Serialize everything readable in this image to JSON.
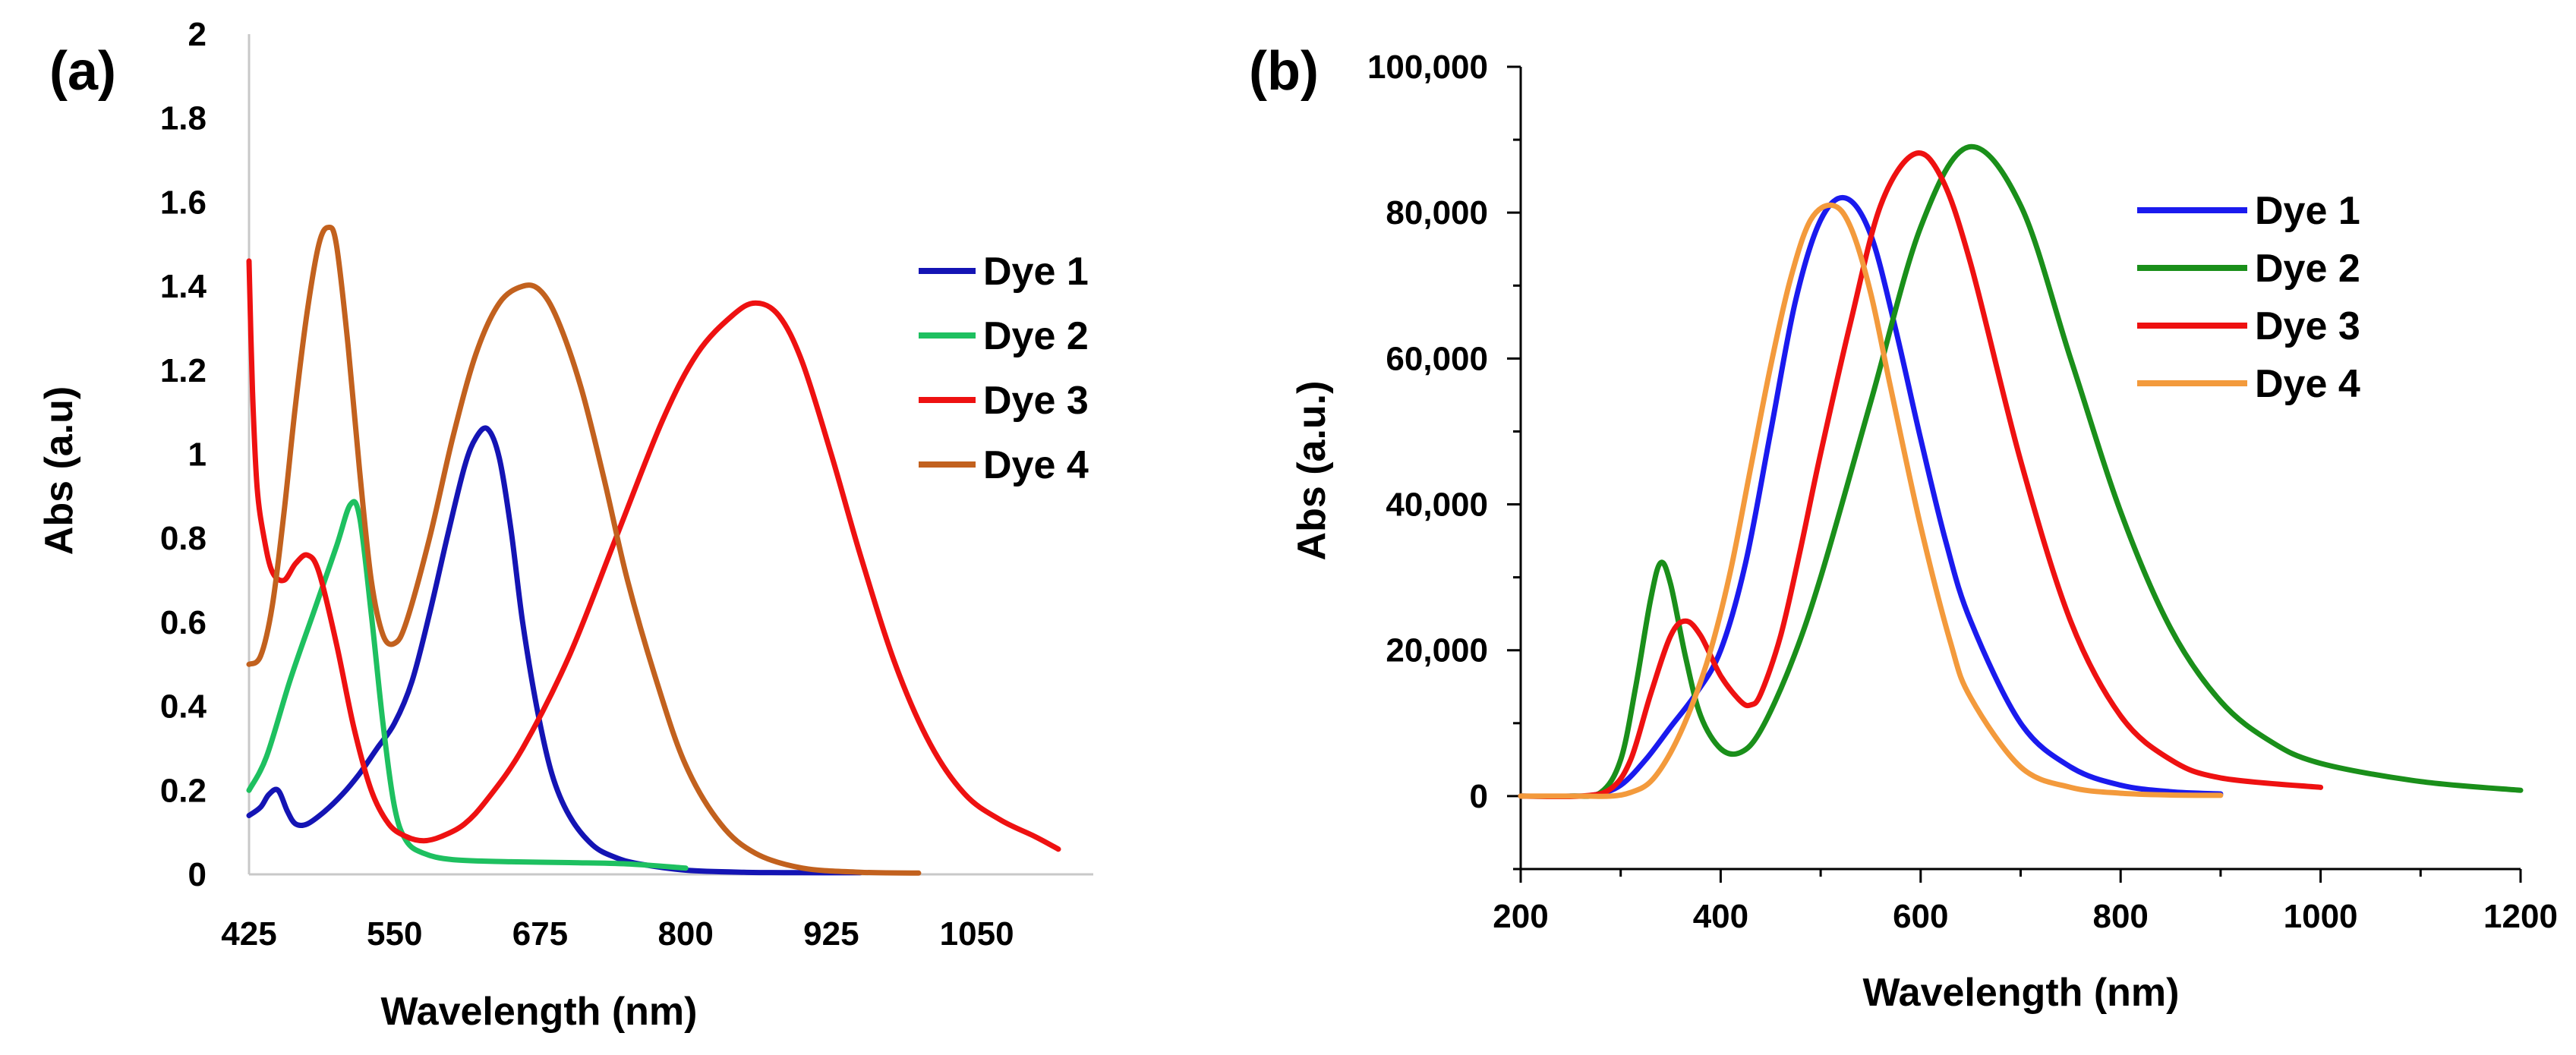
{
  "chart_data": [
    {
      "type": "line",
      "panel_label": "(a)",
      "xlabel": "Wavelength (nm)",
      "ylabel": "Abs (a.u)",
      "xlim": [
        425,
        1150
      ],
      "ylim": [
        0,
        2
      ],
      "xticks": [
        425,
        550,
        675,
        800,
        925,
        1050
      ],
      "yticks": [
        0,
        0.2,
        0.4,
        0.6,
        0.8,
        1,
        1.2,
        1.4,
        1.6,
        1.8,
        2
      ],
      "xtick_labels": [
        "425",
        "550",
        "675",
        "800",
        "925",
        "1050"
      ],
      "ytick_labels": [
        "0",
        "0.2",
        "0.4",
        "0.6",
        "0.8",
        "1",
        "1.2",
        "1.4",
        "1.6",
        "1.8",
        "2"
      ],
      "legend": "right",
      "series": [
        {
          "name": "Dye 1",
          "color": "#1414b4",
          "x": [
            425,
            435,
            442,
            450,
            458,
            465,
            475,
            490,
            505,
            520,
            535,
            550,
            565,
            580,
            595,
            610,
            620,
            630,
            640,
            650,
            660,
            672,
            685,
            700,
            720,
            740,
            760,
            800,
            850,
            900,
            950
          ],
          "y": [
            0.14,
            0.16,
            0.19,
            0.2,
            0.15,
            0.12,
            0.12,
            0.15,
            0.19,
            0.24,
            0.3,
            0.36,
            0.46,
            0.62,
            0.8,
            0.97,
            1.04,
            1.06,
            0.99,
            0.82,
            0.6,
            0.4,
            0.24,
            0.14,
            0.07,
            0.04,
            0.025,
            0.01,
            0.005,
            0.004,
            0.004
          ]
        },
        {
          "name": "Dye 2",
          "color": "#1ec060",
          "x": [
            425,
            440,
            460,
            480,
            500,
            512,
            520,
            530,
            540,
            550,
            560,
            575,
            600,
            650,
            700,
            750,
            800
          ],
          "y": [
            0.2,
            0.28,
            0.46,
            0.62,
            0.78,
            0.88,
            0.85,
            0.62,
            0.36,
            0.16,
            0.08,
            0.05,
            0.035,
            0.03,
            0.028,
            0.025,
            0.015
          ]
        },
        {
          "name": "Dye 3",
          "color": "#ee1111",
          "x": [
            425,
            428,
            432,
            438,
            445,
            455,
            465,
            475,
            485,
            500,
            515,
            530,
            545,
            560,
            575,
            590,
            610,
            630,
            660,
            700,
            740,
            780,
            810,
            840,
            860,
            880,
            900,
            925,
            950,
            980,
            1010,
            1040,
            1070,
            1100,
            1120
          ],
          "y": [
            1.46,
            1.15,
            0.92,
            0.8,
            0.72,
            0.7,
            0.74,
            0.76,
            0.72,
            0.55,
            0.35,
            0.2,
            0.12,
            0.09,
            0.08,
            0.09,
            0.12,
            0.18,
            0.3,
            0.52,
            0.8,
            1.08,
            1.24,
            1.33,
            1.36,
            1.33,
            1.22,
            1.0,
            0.76,
            0.5,
            0.31,
            0.19,
            0.13,
            0.09,
            0.06
          ]
        },
        {
          "name": "Dye 4",
          "color": "#c2611e",
          "x": [
            425,
            435,
            445,
            455,
            465,
            475,
            485,
            493,
            500,
            510,
            520,
            530,
            540,
            550,
            560,
            580,
            600,
            620,
            640,
            660,
            675,
            690,
            710,
            730,
            750,
            775,
            800,
            830,
            860,
            900,
            950,
            1000
          ],
          "y": [
            0.5,
            0.52,
            0.64,
            0.86,
            1.12,
            1.34,
            1.5,
            1.54,
            1.5,
            1.26,
            0.96,
            0.7,
            0.57,
            0.55,
            0.6,
            0.8,
            1.04,
            1.24,
            1.36,
            1.4,
            1.39,
            1.32,
            1.16,
            0.94,
            0.7,
            0.46,
            0.26,
            0.12,
            0.05,
            0.015,
            0.005,
            0.003
          ]
        }
      ]
    },
    {
      "type": "line",
      "panel_label": "(b)",
      "xlabel": "Wavelength (nm)",
      "ylabel": "Abs (a.u.)",
      "xlim": [
        200,
        1200
      ],
      "ylim": [
        -10000,
        100000
      ],
      "xticks": [
        200,
        400,
        600,
        800,
        1000,
        1200
      ],
      "yticks": [
        0,
        20000,
        40000,
        60000,
        80000,
        100000
      ],
      "xtick_labels": [
        "200",
        "400",
        "600",
        "800",
        "1000",
        "1200"
      ],
      "ytick_labels": [
        "0",
        "20,000",
        "40,000",
        "60,000",
        "80,000",
        "100,000"
      ],
      "legend": "top-right",
      "series": [
        {
          "name": "Dye 1",
          "color": "#1a1aee",
          "x": [
            200,
            250,
            275,
            300,
            325,
            350,
            375,
            400,
            425,
            450,
            475,
            500,
            525,
            550,
            575,
            600,
            625,
            650,
            700,
            750,
            800,
            850,
            900
          ],
          "y": [
            0,
            0,
            200,
            1500,
            5000,
            9500,
            14000,
            20000,
            32000,
            50000,
            68000,
            79000,
            82000,
            77000,
            64000,
            49000,
            35000,
            24000,
            10000,
            4000,
            1500,
            600,
            300
          ]
        },
        {
          "name": "Dye 2",
          "color": "#1a8f1a",
          "x": [
            200,
            250,
            280,
            300,
            315,
            330,
            340,
            350,
            365,
            380,
            400,
            420,
            440,
            470,
            500,
            550,
            600,
            648,
            700,
            750,
            800,
            850,
            900,
            950,
            1000,
            1100,
            1200
          ],
          "y": [
            0,
            0,
            500,
            5000,
            15000,
            27000,
            32000,
            29000,
            19000,
            11000,
            6500,
            6000,
            9000,
            18000,
            30000,
            54000,
            78000,
            89000,
            81000,
            60000,
            39000,
            23000,
            13000,
            7500,
            4500,
            2000,
            800
          ]
        },
        {
          "name": "Dye 3",
          "color": "#ee1111",
          "x": [
            200,
            260,
            290,
            310,
            330,
            350,
            365,
            380,
            400,
            420,
            430,
            440,
            460,
            480,
            500,
            530,
            560,
            593,
            620,
            650,
            700,
            750,
            800,
            850,
            900,
            1000
          ],
          "y": [
            0,
            0,
            1000,
            5000,
            14000,
            22000,
            24000,
            22000,
            16500,
            13000,
            12500,
            14000,
            22000,
            34000,
            47000,
            65000,
            81000,
            88000,
            85000,
            73000,
            46000,
            24000,
            11000,
            5000,
            2500,
            1200
          ]
        },
        {
          "name": "Dye 4",
          "color": "#f39a3c",
          "x": [
            200,
            260,
            290,
            310,
            330,
            350,
            370,
            390,
            410,
            430,
            450,
            470,
            490,
            512,
            530,
            550,
            570,
            600,
            630,
            650,
            700,
            750,
            800,
            850,
            900
          ],
          "y": [
            0,
            0,
            0,
            500,
            2000,
            6000,
            12000,
            20000,
            31000,
            45000,
            59000,
            71000,
            79000,
            81000,
            78000,
            69000,
            56000,
            37000,
            21000,
            13500,
            4000,
            1200,
            400,
            150,
            100
          ]
        }
      ]
    }
  ]
}
